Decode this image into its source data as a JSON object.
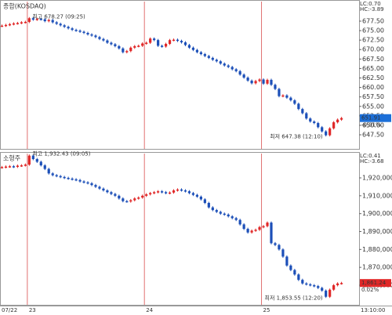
{
  "chart_data": [
    {
      "type": "candlestick",
      "title": "종합(KOSDAQ)",
      "lc_label": "LC:0.70",
      "hc_label": "HC:-3.89",
      "high_label": "최고 678.27 (09:25)",
      "low_label": "최저 647.38 (12:10)",
      "price_label": "651.91",
      "change_label": "-0.01%",
      "up_color": "#e02828",
      "down_color": "#1c4fb8",
      "price_box_color": "#1c6fd8",
      "xlim": [
        0,
        92
      ],
      "ylim": [
        643.78,
        682.67
      ],
      "yticks": [
        {
          "value": 677.5,
          "label": "677.50"
        },
        {
          "value": 675,
          "label": "675.00"
        },
        {
          "value": 672.5,
          "label": "672.50"
        },
        {
          "value": 670,
          "label": "670.00"
        },
        {
          "value": 667.5,
          "label": "667.50"
        },
        {
          "value": 665,
          "label": "665.00"
        },
        {
          "value": 662.5,
          "label": "662.50"
        },
        {
          "value": 660,
          "label": "660.00"
        },
        {
          "value": 657.5,
          "label": "657.50"
        },
        {
          "value": 655,
          "label": "655.00"
        },
        {
          "value": 652.5,
          "label": "652.50"
        },
        {
          "value": 650,
          "label": "650.00"
        },
        {
          "value": 647.5,
          "label": "647.50"
        }
      ],
      "values": [
        676.3,
        676.5,
        676.7,
        676.9,
        677.0,
        677.2,
        677.3,
        678.27,
        677.9,
        678.1,
        678.0,
        677.5,
        677.8,
        677.2,
        676.8,
        676.4,
        676.0,
        675.6,
        675.2,
        675.0,
        674.7,
        674.4,
        674.0,
        673.7,
        673.3,
        672.8,
        672.4,
        671.8,
        671.4,
        670.9,
        670.3,
        669.3,
        669.6,
        670.5,
        670.9,
        671.0,
        671.6,
        671.8,
        672.9,
        672.5,
        671.0,
        670.8,
        671.5,
        672.5,
        672.6,
        672.3,
        671.9,
        671.2,
        670.5,
        669.9,
        669.3,
        668.8,
        668.3,
        667.8,
        667.3,
        666.9,
        666.3,
        665.8,
        665.4,
        664.8,
        664.3,
        663.4,
        662.6,
        661.8,
        661.1,
        661.7,
        662.1,
        661.0,
        662.0,
        660.7,
        659.6,
        657.7,
        657.9,
        657.3,
        656.6,
        655.7,
        654.3,
        653.2,
        651.8,
        651.0,
        650.6,
        649.5,
        648.4,
        647.38,
        649.2,
        650.8,
        651.5,
        651.91
      ]
    },
    {
      "type": "candlestick",
      "title": "소형주",
      "lc_label": "LC:0.41",
      "hc_label": "HC:-3.68",
      "high_label": "최고 1,932.43 (09:05)",
      "low_label": "최저 1,853.55 (12:20)",
      "price_label": "1,861.24",
      "change_label": "0.02%",
      "up_color": "#e02828",
      "down_color": "#1c4fb8",
      "price_box_color": "#e02828",
      "xlim": [
        0,
        92
      ],
      "ylim": [
        1849050,
        1933580
      ],
      "xticks": [
        {
          "value": 0,
          "label": "07/22"
        },
        {
          "value": 7,
          "label": "23"
        },
        {
          "value": 37,
          "label": "24"
        },
        {
          "value": 67,
          "label": "25"
        },
        {
          "value": 92,
          "label": "13:10:00"
        }
      ],
      "yticks": [
        {
          "value": 1920000,
          "label": "1,920,000"
        },
        {
          "value": 1910000,
          "label": "1,910,000"
        },
        {
          "value": 1900000,
          "label": "1,900,000"
        },
        {
          "value": 1890000,
          "label": "1,890,000"
        },
        {
          "value": 1880000,
          "label": "1,880,000"
        },
        {
          "value": 1870000,
          "label": "1,870,000"
        },
        {
          "value": 1860000,
          "label": "1,860,000"
        }
      ],
      "values": [
        1926000,
        1926300,
        1926500,
        1926200,
        1926800,
        1927000,
        1927400,
        1932430,
        1930500,
        1929000,
        1927000,
        1925000,
        1922500,
        1921500,
        1921000,
        1920500,
        1920000,
        1919600,
        1919200,
        1918800,
        1918000,
        1917500,
        1917000,
        1916000,
        1915000,
        1914000,
        1913000,
        1912000,
        1911000,
        1910000,
        1908500,
        1907000,
        1906800,
        1907500,
        1908500,
        1909000,
        1910000,
        1910800,
        1911500,
        1912000,
        1912500,
        1912000,
        1911500,
        1911800,
        1913000,
        1913500,
        1913000,
        1912500,
        1911500,
        1910500,
        1909500,
        1908000,
        1906000,
        1903500,
        1902000,
        1901000,
        1900000,
        1899500,
        1898500,
        1897500,
        1896500,
        1894000,
        1891500,
        1889500,
        1890500,
        1891000,
        1892500,
        1893000,
        1895000,
        1883500,
        1882500,
        1880000,
        1876000,
        1871000,
        1868500,
        1866000,
        1863000,
        1861000,
        1860500,
        1860000,
        1859500,
        1858500,
        1857000,
        1853550,
        1857500,
        1860000,
        1861000,
        1861240
      ]
    }
  ]
}
